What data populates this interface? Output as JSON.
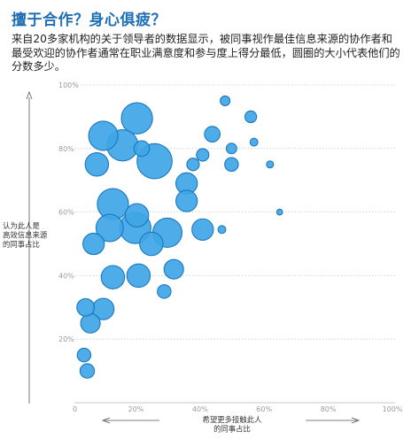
{
  "header": {
    "title": "擅于合作？身心俱疲？",
    "subtitle": "来自20多家机构的关于领导者的数据显示，被同事视作最佳信息来源的协作者和最受欢迎的协作者通常在职业满意度和参与度上得分最低，圆圈的大小代表他们的分数多少。"
  },
  "colors": {
    "bubble": "#3fa6e6",
    "bubble_stroke": "#1c77bd",
    "grid": "#c9c9c9",
    "axis": "#555555"
  },
  "chart_data": {
    "type": "scatter",
    "title": "擅于合作？身心俱疲？",
    "xlabel_lines": [
      "希望更多接触此人",
      "的同事占比"
    ],
    "ylabel_lines": [
      "认为此人是",
      "高效信息来源",
      "的同事占比"
    ],
    "xlim": [
      0,
      100
    ],
    "ylim": [
      0,
      100
    ],
    "x_ticks": [
      0,
      20,
      40,
      60,
      80,
      100
    ],
    "x_tick_labels": [
      "0",
      "20%",
      "40%",
      "60%",
      "80%",
      "100%"
    ],
    "y_ticks": [
      20,
      40,
      60,
      80,
      100
    ],
    "y_tick_labels": [
      "20%",
      "40%",
      "60%",
      "80%",
      "100%"
    ],
    "grid": "horizontal dotted",
    "size_meaning": "圆圈的大小代表职业满意度和参与度得分",
    "points": [
      {
        "x": 19.5,
        "y": 89.5,
        "size": 8
      },
      {
        "x": 9,
        "y": 84,
        "size": 7.5
      },
      {
        "x": 15,
        "y": 81,
        "size": 8
      },
      {
        "x": 25,
        "y": 76,
        "size": 9
      },
      {
        "x": 7,
        "y": 75,
        "size": 6
      },
      {
        "x": 21,
        "y": 80,
        "size": 4
      },
      {
        "x": 47,
        "y": 95,
        "size": 2.5
      },
      {
        "x": 55,
        "y": 90,
        "size": 3
      },
      {
        "x": 43,
        "y": 84.5,
        "size": 4
      },
      {
        "x": 49,
        "y": 80,
        "size": 2.7
      },
      {
        "x": 56,
        "y": 82,
        "size": 2
      },
      {
        "x": 40,
        "y": 78,
        "size": 3.2
      },
      {
        "x": 37,
        "y": 75,
        "size": 3.2
      },
      {
        "x": 49,
        "y": 75,
        "size": 3.5
      },
      {
        "x": 61,
        "y": 75,
        "size": 1.8
      },
      {
        "x": 35,
        "y": 69,
        "size": 5.5
      },
      {
        "x": 35,
        "y": 63.5,
        "size": 5.5
      },
      {
        "x": 12,
        "y": 62.5,
        "size": 8
      },
      {
        "x": 19.5,
        "y": 59,
        "size": 6
      },
      {
        "x": 11,
        "y": 55,
        "size": 7
      },
      {
        "x": 19,
        "y": 55,
        "size": 8
      },
      {
        "x": 29,
        "y": 53.5,
        "size": 7.5
      },
      {
        "x": 40,
        "y": 54.5,
        "size": 5.5
      },
      {
        "x": 46,
        "y": 54.5,
        "size": 2
      },
      {
        "x": 64,
        "y": 60,
        "size": 1.5
      },
      {
        "x": 6,
        "y": 50,
        "size": 5.5
      },
      {
        "x": 24,
        "y": 50,
        "size": 6
      },
      {
        "x": 31,
        "y": 42,
        "size": 5
      },
      {
        "x": 12,
        "y": 39.5,
        "size": 6
      },
      {
        "x": 20,
        "y": 40,
        "size": 6
      },
      {
        "x": 28,
        "y": 35,
        "size": 3.5
      },
      {
        "x": 3.5,
        "y": 30,
        "size": 4.5
      },
      {
        "x": 9,
        "y": 29.5,
        "size": 5.5
      },
      {
        "x": 5,
        "y": 25,
        "size": 5
      },
      {
        "x": 3,
        "y": 15,
        "size": 3.5
      },
      {
        "x": 4,
        "y": 10,
        "size": 3.7
      }
    ]
  }
}
